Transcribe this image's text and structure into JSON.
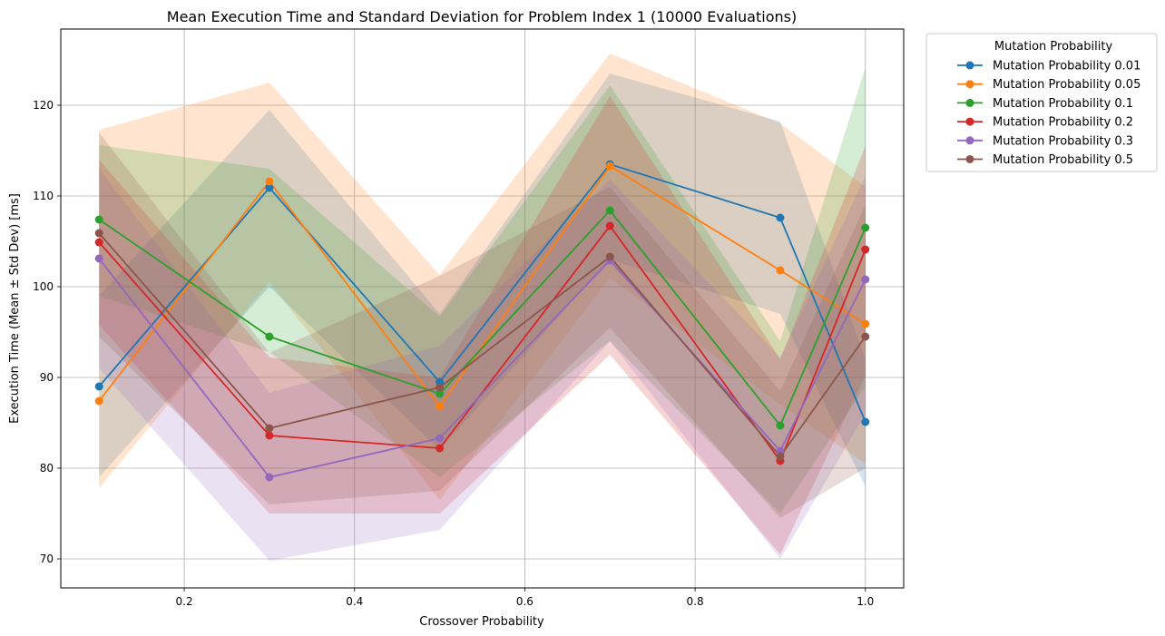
{
  "chart_data": {
    "type": "line",
    "title": "Mean Execution Time and Standard Deviation for Problem Index 1 (10000 Evaluations)",
    "xlabel": "Crossover Probability",
    "ylabel": "Execution Time (Mean ± Std Dev) [ms]",
    "xlim": [
      0.055,
      1.045
    ],
    "ylim": [
      66.8,
      128.4
    ],
    "xticks": [
      0.2,
      0.4,
      0.6,
      0.8,
      1.0
    ],
    "xtick_labels": [
      "0.2",
      "0.4",
      "0.6",
      "0.8",
      "1.0"
    ],
    "yticks": [
      70,
      80,
      90,
      100,
      110,
      120
    ],
    "ytick_labels": [
      "70",
      "80",
      "90",
      "100",
      "110",
      "120"
    ],
    "grid": true,
    "legend_title": "Mutation Probability",
    "legend_position": "outside upper right",
    "x": [
      0.1,
      0.3,
      0.5,
      0.7,
      0.9,
      1.0
    ],
    "series": [
      {
        "name": "Mutation Probability 0.01",
        "color": "#1f77b4",
        "values": [
          89.0,
          110.9,
          89.5,
          113.5,
          107.6,
          85.1
        ],
        "lower": [
          79.0,
          100.0,
          82.0,
          103.0,
          97.0,
          78.0
        ],
        "upper": [
          99.0,
          119.5,
          97.0,
          123.5,
          118.2,
          92.0
        ]
      },
      {
        "name": "Mutation Probability 0.05",
        "color": "#ff7f0e",
        "values": [
          87.4,
          111.6,
          86.8,
          113.3,
          101.8,
          95.9
        ],
        "lower": [
          77.8,
          100.5,
          76.5,
          101.0,
          87.0,
          80.5
        ],
        "upper": [
          117.3,
          122.5,
          101.3,
          125.7,
          118.0,
          111.0
        ]
      },
      {
        "name": "Mutation Probability 0.1",
        "color": "#2ca02c",
        "values": [
          107.4,
          94.5,
          88.2,
          108.4,
          84.7,
          106.5
        ],
        "lower": [
          99.0,
          92.8,
          79.0,
          94.0,
          75.0,
          89.0
        ],
        "upper": [
          115.6,
          113.0,
          96.7,
          122.2,
          94.0,
          124.2
        ]
      },
      {
        "name": "Mutation Probability 0.2",
        "color": "#d62728",
        "values": [
          104.9,
          83.6,
          82.2,
          106.7,
          80.8,
          104.1
        ],
        "lower": [
          95.8,
          75.0,
          75.0,
          92.5,
          70.5,
          90.2
        ],
        "upper": [
          114.0,
          92.2,
          90.0,
          121.0,
          92.0,
          115.5
        ]
      },
      {
        "name": "Mutation Probability 0.3",
        "color": "#9467bd",
        "values": [
          103.1,
          79.0,
          83.3,
          102.9,
          81.9,
          100.8
        ],
        "lower": [
          91.0,
          69.8,
          73.2,
          94.0,
          70.0,
          86.0
        ],
        "upper": [
          113.0,
          88.3,
          93.5,
          111.8,
          92.2,
          112.2
        ]
      },
      {
        "name": "Mutation Probability 0.5",
        "color": "#8c564b",
        "values": [
          105.9,
          84.4,
          88.9,
          103.3,
          81.3,
          94.5
        ],
        "lower": [
          94.5,
          76.0,
          77.5,
          95.5,
          74.5,
          80.0
        ],
        "upper": [
          117.0,
          92.7,
          101.2,
          111.0,
          88.5,
          109.0
        ]
      }
    ]
  }
}
